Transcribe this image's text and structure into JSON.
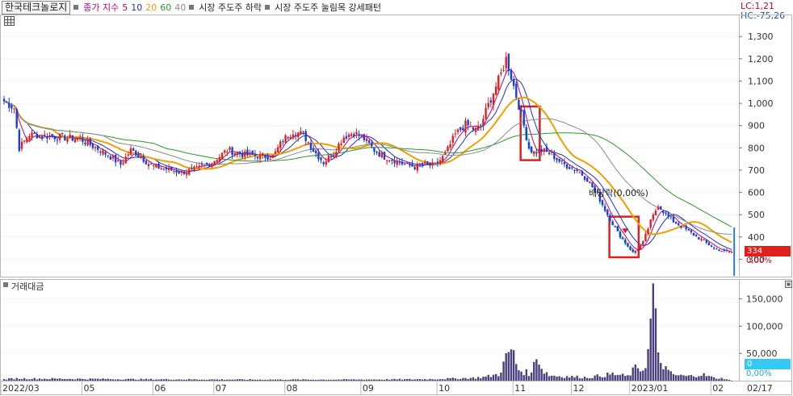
{
  "legend": {
    "stock_name": "한국테크놀로지",
    "ma_label": "종가 지수",
    "ma_periods": [
      "5",
      "10",
      "20",
      "60",
      "40"
    ],
    "ma_colors": [
      "#c0007a",
      "#2233cc",
      "#f0a000",
      "#2a9a2a",
      "#8c8c8c"
    ],
    "indicator1": "시장 주도주 하락",
    "indicator2": "시장 주도주 눌림목 강세패턴"
  },
  "corner": {
    "lc": "LC:1,21",
    "hc": "HC:-75,26"
  },
  "volume_panel": {
    "title": "거래대금"
  },
  "current": {
    "price": "334",
    "change": "0,00%",
    "volume": "0",
    "volume_change": "0,00%"
  },
  "annotation": {
    "label": "배당락(0,00%)"
  },
  "colors": {
    "up": "#e0201c",
    "down": "#1a3fd6",
    "badge_price": "#e0201c",
    "badge_volume": "#34c9f4",
    "signal_fill": "#b8f2b0",
    "signal_box": "#e0201c"
  },
  "chart_data": [
    {
      "type": "candlestick",
      "panel": "price",
      "x_tick_labels": [
        "2022/03",
        "05",
        "06",
        "07",
        "08",
        "09",
        "10",
        "11",
        "12",
        "2023/01",
        "02",
        "02/17"
      ],
      "y_tick_labels": [
        "1,300",
        "1,200",
        "1,100",
        "1,000",
        "900",
        "800",
        "700",
        "600",
        "500",
        "400",
        "300"
      ],
      "ylim": [
        222,
        1395
      ],
      "close_anchors": [
        [
          0,
          1010
        ],
        [
          4,
          980
        ],
        [
          6,
          800
        ],
        [
          10,
          860
        ],
        [
          20,
          850
        ],
        [
          30,
          840
        ],
        [
          38,
          790
        ],
        [
          42,
          760
        ],
        [
          46,
          725
        ],
        [
          50,
          790
        ],
        [
          54,
          760
        ],
        [
          58,
          720
        ],
        [
          64,
          705
        ],
        [
          70,
          690
        ],
        [
          76,
          705
        ],
        [
          82,
          735
        ],
        [
          88,
          790
        ],
        [
          94,
          770
        ],
        [
          100,
          765
        ],
        [
          106,
          760
        ],
        [
          110,
          835
        ],
        [
          114,
          875
        ],
        [
          118,
          860
        ],
        [
          122,
          790
        ],
        [
          126,
          735
        ],
        [
          130,
          780
        ],
        [
          134,
          850
        ],
        [
          138,
          870
        ],
        [
          142,
          840
        ],
        [
          146,
          790
        ],
        [
          150,
          760
        ],
        [
          154,
          745
        ],
        [
          158,
          725
        ],
        [
          162,
          715
        ],
        [
          166,
          725
        ],
        [
          170,
          720
        ],
        [
          174,
          770
        ],
        [
          178,
          860
        ],
        [
          182,
          905
        ],
        [
          186,
          880
        ],
        [
          188,
          900
        ],
        [
          190,
          965
        ],
        [
          193,
          1050
        ],
        [
          196,
          1130
        ],
        [
          198,
          1200
        ],
        [
          200,
          1120
        ],
        [
          203,
          990
        ],
        [
          205,
          900
        ],
        [
          207,
          800
        ],
        [
          209,
          780
        ],
        [
          212,
          790
        ],
        [
          216,
          770
        ],
        [
          220,
          730
        ],
        [
          226,
          700
        ],
        [
          230,
          660
        ],
        [
          234,
          590
        ],
        [
          238,
          500
        ],
        [
          242,
          420
        ],
        [
          246,
          360
        ],
        [
          248,
          330
        ],
        [
          250,
          345
        ],
        [
          252,
          375
        ],
        [
          255,
          470
        ],
        [
          258,
          545
        ],
        [
          261,
          500
        ],
        [
          264,
          470
        ],
        [
          268,
          440
        ],
        [
          272,
          410
        ],
        [
          276,
          380
        ],
        [
          280,
          350
        ],
        [
          284,
          335
        ],
        [
          287,
          334
        ]
      ],
      "moving_averages": [
        "5",
        "10",
        "20",
        "60",
        "40"
      ],
      "annotations": [
        "배당락(0,00%)"
      ]
    },
    {
      "type": "bar",
      "panel": "volume",
      "title": "거래대금",
      "y_tick_labels": [
        "150,000",
        "100,000",
        "50,000"
      ],
      "ylim": [
        0,
        185000
      ],
      "spikes": [
        [
          0,
          2500
        ],
        [
          4,
          4000
        ],
        [
          42,
          3000
        ],
        [
          60,
          2500
        ],
        [
          100,
          2000
        ],
        [
          130,
          2000
        ],
        [
          160,
          2500
        ],
        [
          170,
          3000
        ],
        [
          185,
          5000
        ],
        [
          190,
          7000
        ],
        [
          195,
          12000
        ],
        [
          200,
          58000
        ],
        [
          203,
          20000
        ],
        [
          206,
          15000
        ],
        [
          208,
          12000
        ],
        [
          210,
          55000
        ],
        [
          212,
          22000
        ],
        [
          215,
          10000
        ],
        [
          220,
          8000
        ],
        [
          230,
          6000
        ],
        [
          240,
          12000
        ],
        [
          246,
          8000
        ],
        [
          248,
          18000
        ],
        [
          250,
          25000
        ],
        [
          252,
          20000
        ],
        [
          254,
          50000
        ],
        [
          256,
          165000
        ],
        [
          258,
          40000
        ],
        [
          260,
          30000
        ],
        [
          262,
          15000
        ],
        [
          265,
          10000
        ],
        [
          270,
          8000
        ],
        [
          275,
          12000
        ],
        [
          280,
          5000
        ],
        [
          284,
          4000
        ],
        [
          287,
          0
        ]
      ]
    }
  ]
}
